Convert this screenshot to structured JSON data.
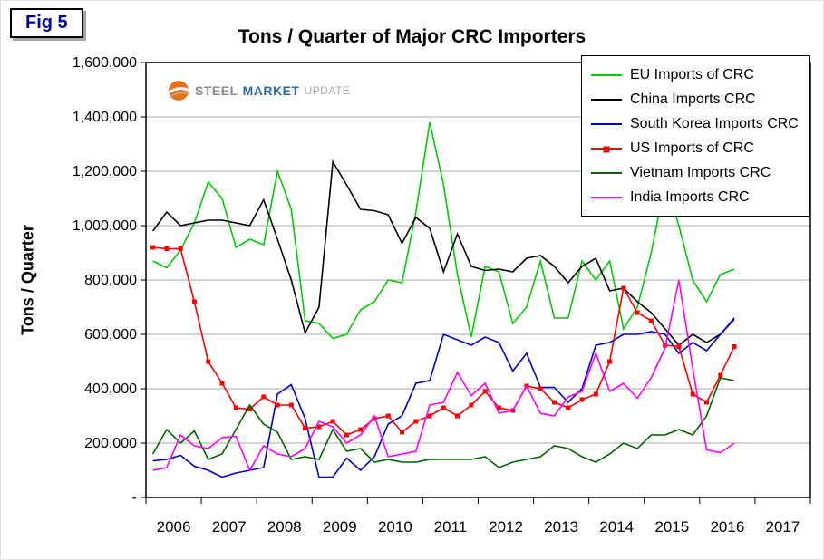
{
  "fig_label": "Fig 5",
  "title": "Tons / Quarter of Major CRC Importers",
  "ylabel": "Tons / Quarter",
  "logo": {
    "steel": "STEEL",
    "market": "MARKET",
    "update": "UPDATE"
  },
  "chart_data": {
    "type": "line",
    "x_tick_labels": [
      "2006",
      "2007",
      "2008",
      "2009",
      "2010",
      "2011",
      "2012",
      "2013",
      "2014",
      "2015",
      "2016",
      "2017"
    ],
    "x_unit": "quarter",
    "data_start": "2006 Q1",
    "data_end": "2016 Q3",
    "ylim": [
      0,
      1600000
    ],
    "y_tick_step": 200000,
    "y_tick_labels": [
      "-",
      "200,000",
      "400,000",
      "600,000",
      "800,000",
      "1,000,000",
      "1,200,000",
      "1,400,000",
      "1,600,000"
    ],
    "grid": "horizontal",
    "legend_position": "top-right",
    "series": [
      {
        "name": "EU Imports of CRC",
        "color": "#00cc00",
        "marker": "none",
        "values": [
          870000,
          845000,
          910000,
          1010000,
          1160000,
          1100000,
          920000,
          950000,
          930000,
          1200000,
          1060000,
          650000,
          640000,
          585000,
          600000,
          690000,
          720000,
          800000,
          790000,
          1050000,
          1380000,
          1150000,
          820000,
          590000,
          850000,
          830000,
          640000,
          700000,
          870000,
          660000,
          660000,
          870000,
          800000,
          870000,
          620000,
          700000,
          900000,
          1160000,
          1000000,
          800000,
          720000,
          820000,
          840000
        ]
      },
      {
        "name": "China Imports CRC",
        "color": "#000000",
        "marker": "none",
        "values": [
          980000,
          1050000,
          1000000,
          1010000,
          1020000,
          1020000,
          1010000,
          1000000,
          1095000,
          950000,
          800000,
          605000,
          700000,
          1235000,
          1150000,
          1060000,
          1055000,
          1040000,
          935000,
          1030000,
          990000,
          830000,
          970000,
          850000,
          835000,
          840000,
          830000,
          880000,
          890000,
          850000,
          790000,
          850000,
          880000,
          760000,
          770000,
          720000,
          680000,
          620000,
          560000,
          600000,
          570000,
          600000,
          655000
        ]
      },
      {
        "name": "South Korea Imports CRC",
        "color": "#0000cd",
        "marker": "none",
        "values": [
          135000,
          140000,
          155000,
          115000,
          100000,
          75000,
          90000,
          100000,
          110000,
          380000,
          415000,
          290000,
          75000,
          75000,
          145000,
          100000,
          150000,
          270000,
          300000,
          420000,
          430000,
          600000,
          580000,
          560000,
          590000,
          570000,
          465000,
          530000,
          405000,
          405000,
          350000,
          400000,
          560000,
          570000,
          600000,
          600000,
          610000,
          600000,
          530000,
          570000,
          540000,
          600000,
          660000
        ]
      },
      {
        "name": "US Imports of CRC",
        "color": "#ff0000",
        "marker": "square",
        "values": [
          920000,
          915000,
          915000,
          720000,
          500000,
          420000,
          330000,
          325000,
          370000,
          340000,
          340000,
          255000,
          260000,
          280000,
          230000,
          250000,
          290000,
          300000,
          240000,
          280000,
          300000,
          330000,
          300000,
          340000,
          390000,
          330000,
          320000,
          410000,
          400000,
          350000,
          330000,
          360000,
          380000,
          500000,
          770000,
          680000,
          650000,
          560000,
          555000,
          380000,
          350000,
          450000,
          555000
        ]
      },
      {
        "name": "Vietnam Imports CRC",
        "color": "#006400",
        "marker": "none",
        "values": [
          160000,
          250000,
          200000,
          245000,
          140000,
          160000,
          250000,
          340000,
          270000,
          240000,
          140000,
          150000,
          140000,
          250000,
          170000,
          180000,
          130000,
          140000,
          130000,
          130000,
          140000,
          140000,
          140000,
          140000,
          150000,
          110000,
          130000,
          140000,
          150000,
          190000,
          180000,
          150000,
          130000,
          160000,
          200000,
          180000,
          230000,
          230000,
          250000,
          230000,
          300000,
          440000,
          430000
        ]
      },
      {
        "name": "India Imports CRC",
        "color": "#ff00ff",
        "marker": "none",
        "values": [
          100000,
          110000,
          230000,
          190000,
          180000,
          220000,
          225000,
          100000,
          190000,
          160000,
          150000,
          180000,
          280000,
          260000,
          200000,
          230000,
          300000,
          150000,
          160000,
          170000,
          340000,
          350000,
          460000,
          375000,
          420000,
          310000,
          320000,
          410000,
          310000,
          300000,
          370000,
          390000,
          530000,
          390000,
          420000,
          365000,
          440000,
          550000,
          800000,
          475000,
          175000,
          165000,
          200000
        ]
      }
    ]
  }
}
